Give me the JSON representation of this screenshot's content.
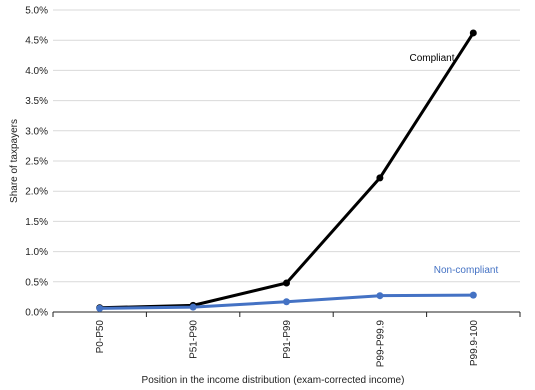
{
  "chart_data": {
    "type": "line",
    "categories": [
      "P0-P50",
      "P51-P90",
      "P91-P99",
      "P99-P99.9",
      "P99.9-100"
    ],
    "series": [
      {
        "name": "Compliant",
        "color": "#000000",
        "values": [
          0.07,
          0.11,
          0.48,
          2.22,
          4.62
        ]
      },
      {
        "name": "Non-compliant",
        "color": "#4472c4",
        "values": [
          0.06,
          0.08,
          0.17,
          0.27,
          0.28
        ]
      }
    ],
    "ylim": [
      0,
      5
    ],
    "yticks": [
      0,
      0.5,
      1,
      1.5,
      2,
      2.5,
      3,
      3.5,
      4,
      4.5,
      5
    ],
    "ytick_labels": [
      "0.0%",
      "0.5%",
      "1.0%",
      "1.5%",
      "2.0%",
      "2.5%",
      "3.0%",
      "3.5%",
      "4.0%",
      "4.5%",
      "5.0%"
    ],
    "xlabel": "Position in the income distribution (exam-corrected income)",
    "ylabel": "Share of taxpayers",
    "grid": true,
    "legend": "inline labels"
  }
}
